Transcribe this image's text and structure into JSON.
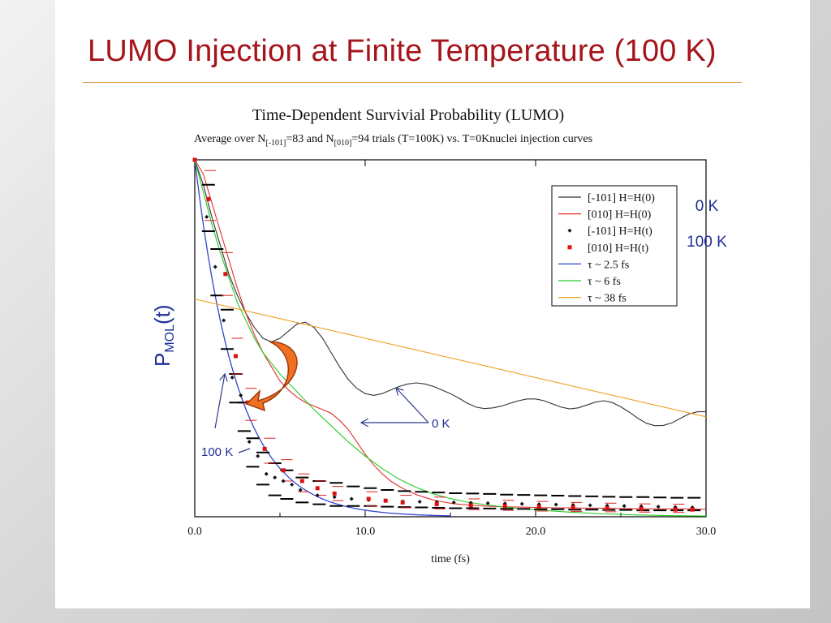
{
  "slide": {
    "title": "LUMO Injection at Finite Temperature (100 K)"
  },
  "colors": {
    "title": "#a5151b",
    "rule": "#d9892f",
    "label_blue": "#1f2f9a",
    "arrow_fill": "#f07022"
  },
  "chart_data": {
    "type": "line",
    "title": "Time-Dependent Survivial Probability (LUMO)",
    "subtitle": {
      "prefix": "Average over  N",
      "sub1": "[-101]",
      "mid1": "=83 and N",
      "sub2": "[010]",
      "suffix": "=94 trials (T=100K) vs. T=0Knuclei injection curves"
    },
    "xlabel": "time (fs)",
    "ylabel": {
      "main": "P",
      "sub": "MOL",
      "tail": "(t)"
    },
    "xlim": [
      0,
      30
    ],
    "ylim": [
      0,
      1
    ],
    "x_ticks": [
      "0.0",
      "10.0",
      "20.0",
      "30.0"
    ],
    "x_tick_values": [
      0,
      10,
      20,
      30
    ],
    "legend_position": "top-right",
    "legend": [
      {
        "label": "[-101] H=H(0)",
        "style": "line",
        "color": "#333333"
      },
      {
        "label": "[010] H=H(0)",
        "style": "line",
        "color": "#e03030"
      },
      {
        "label": "[-101] H=H(t)",
        "style": "dot",
        "color": "#111111"
      },
      {
        "label": "[010] H=H(t)",
        "style": "square",
        "color": "#e01010"
      },
      {
        "label": "τ ~ 2.5 fs",
        "style": "line",
        "color": "#3344cc"
      },
      {
        "label": "τ ~ 6 fs",
        "style": "line",
        "color": "#22cc22"
      },
      {
        "label": "τ ~ 38 fs",
        "style": "line",
        "color": "#f0a020"
      }
    ],
    "side_labels": {
      "zero_k": "0 K",
      "hundred_k": "100 K"
    },
    "annotations": {
      "zero_k": "0 K",
      "hundred_k": "100 K"
    },
    "series": [
      {
        "name": "[-101] H=H(0)",
        "kind": "line",
        "color": "#333333",
        "x": [
          0,
          0.5,
          1,
          1.5,
          2,
          2.5,
          3,
          3.5,
          4,
          4.5,
          5,
          5.5,
          6,
          6.5,
          7,
          7.5,
          8,
          8.5,
          9,
          9.5,
          10,
          10.5,
          11,
          11.5,
          12,
          12.5,
          13,
          13.5,
          14,
          14.5,
          15,
          15.5,
          16,
          16.5,
          17,
          17.5,
          18,
          18.5,
          19,
          19.5,
          20,
          20.5,
          21,
          21.5,
          22,
          22.5,
          23,
          23.5,
          24,
          24.5,
          25,
          25.5,
          26,
          26.5,
          27,
          27.5,
          28,
          28.5,
          29,
          29.5,
          30
        ],
        "y": [
          1.0,
          0.93,
          0.84,
          0.76,
          0.68,
          0.62,
          0.57,
          0.53,
          0.5,
          0.49,
          0.5,
          0.52,
          0.54,
          0.545,
          0.53,
          0.5,
          0.46,
          0.42,
          0.385,
          0.36,
          0.345,
          0.34,
          0.345,
          0.355,
          0.365,
          0.372,
          0.375,
          0.372,
          0.365,
          0.355,
          0.345,
          0.332,
          0.318,
          0.307,
          0.303,
          0.305,
          0.31,
          0.318,
          0.325,
          0.33,
          0.33,
          0.325,
          0.316,
          0.307,
          0.302,
          0.305,
          0.313,
          0.321,
          0.325,
          0.32,
          0.308,
          0.293,
          0.276,
          0.262,
          0.255,
          0.256,
          0.263,
          0.276,
          0.288,
          0.294,
          0.294
        ]
      },
      {
        "name": "[010] H=H(0)",
        "kind": "line",
        "color": "#e03030",
        "x": [
          0,
          0.5,
          1,
          1.5,
          2,
          2.5,
          3,
          3.5,
          4,
          4.5,
          5,
          5.5,
          6,
          6.5,
          7,
          7.5,
          8,
          8.5,
          9,
          9.5,
          10,
          10.5,
          11,
          11.5,
          12,
          12.5,
          13,
          13.5,
          14,
          14.5,
          15,
          15.5,
          16,
          17,
          18,
          19,
          20,
          21,
          22,
          23,
          24,
          25,
          26,
          27,
          28,
          29,
          30
        ],
        "y": [
          1.0,
          0.96,
          0.88,
          0.8,
          0.72,
          0.64,
          0.57,
          0.51,
          0.46,
          0.42,
          0.38,
          0.355,
          0.335,
          0.32,
          0.31,
          0.3,
          0.29,
          0.27,
          0.245,
          0.21,
          0.175,
          0.145,
          0.12,
          0.1,
          0.085,
          0.072,
          0.062,
          0.054,
          0.047,
          0.042,
          0.038,
          0.035,
          0.033,
          0.03,
          0.028,
          0.027,
          0.026,
          0.025,
          0.025,
          0.024,
          0.024,
          0.023,
          0.023,
          0.022,
          0.022,
          0.022,
          0.021
        ]
      },
      {
        "name": "τ ~ 2.5 fs",
        "kind": "exp",
        "color": "#3344cc",
        "tau": 2.5,
        "x_max": 15
      },
      {
        "name": "τ ~ 6 fs",
        "kind": "line",
        "color": "#22cc22",
        "x": [
          0,
          0.5,
          1,
          1.5,
          2,
          2.5,
          3,
          3.5,
          4,
          4.5,
          5,
          5.5,
          6,
          7,
          8,
          9,
          10,
          11,
          12,
          13,
          14,
          15,
          16,
          17,
          18,
          19,
          20,
          22,
          24,
          26,
          28,
          30
        ],
        "y": [
          1.0,
          0.91,
          0.82,
          0.74,
          0.67,
          0.6,
          0.55,
          0.5,
          0.46,
          0.43,
          0.4,
          0.375,
          0.35,
          0.3,
          0.255,
          0.21,
          0.17,
          0.135,
          0.105,
          0.082,
          0.064,
          0.051,
          0.041,
          0.034,
          0.028,
          0.023,
          0.019,
          0.013,
          0.008,
          0.005,
          0.003,
          0.002
        ]
      },
      {
        "name": "τ ~ 38 fs",
        "kind": "line",
        "color": "#f0a020",
        "x": [
          0,
          30
        ],
        "y": [
          0.61,
          0.28
        ]
      },
      {
        "name": "[-101] H=H(t)",
        "kind": "dots",
        "color": "#111111",
        "x": [
          0.7,
          1.2,
          1.7,
          2.2,
          2.7,
          3.2,
          3.7,
          4.2,
          4.7,
          5.2,
          5.7,
          6.2,
          7.2,
          8.2,
          9.2,
          10.2,
          11.2,
          12.2,
          13.2,
          14.2,
          15.2,
          16.2,
          17.2,
          18.2,
          19.2,
          20.2,
          21.2,
          22.2,
          23.2,
          24.2,
          25.2,
          26.2,
          27.2,
          28.2,
          29.2
        ],
        "y": [
          0.84,
          0.7,
          0.55,
          0.39,
          0.34,
          0.21,
          0.17,
          0.12,
          0.11,
          0.1,
          0.09,
          0.075,
          0.06,
          0.055,
          0.05,
          0.047,
          0.045,
          0.043,
          0.042,
          0.041,
          0.04,
          0.039,
          0.038,
          0.037,
          0.036,
          0.035,
          0.034,
          0.033,
          0.032,
          0.031,
          0.03,
          0.029,
          0.028,
          0.027,
          0.026
        ]
      },
      {
        "name": "[010] H=H(t)",
        "kind": "squares",
        "color": "#e01010",
        "x": [
          0.8,
          1.8,
          2.4,
          3.1,
          4.1,
          5.2,
          6.3,
          7.2,
          8.2,
          10.2,
          11.2,
          12.2,
          14.2,
          16.2,
          18.2,
          20.2,
          22.2,
          24.2,
          26.2,
          28.2,
          29.2
        ],
        "y": [
          0.89,
          0.68,
          0.45,
          0.32,
          0.19,
          0.13,
          0.1,
          0.08,
          0.065,
          0.05,
          0.045,
          0.04,
          0.035,
          0.032,
          0.03,
          0.028,
          0.026,
          0.024,
          0.022,
          0.02,
          0.02
        ]
      },
      {
        "name": "error-bars",
        "kind": "errorbars",
        "black": [
          [
            0.8,
            0.93,
            0.8
          ],
          [
            1.3,
            0.75,
            0.62
          ],
          [
            1.9,
            0.58,
            0.47
          ],
          [
            2.4,
            0.4,
            0.32
          ],
          [
            2.9,
            0.32,
            0.24
          ],
          [
            3.4,
            0.22,
            0.14
          ],
          [
            4.0,
            0.18,
            0.09
          ],
          [
            4.7,
            0.15,
            0.06
          ],
          [
            5.4,
            0.13,
            0.05
          ],
          [
            6.3,
            0.11,
            0.04
          ],
          [
            7.3,
            0.1,
            0.035
          ],
          [
            8.3,
            0.095,
            0.03
          ],
          [
            9.3,
            0.085,
            0.03
          ],
          [
            10.3,
            0.08,
            0.03
          ],
          [
            11.3,
            0.075,
            0.028
          ],
          [
            12.3,
            0.072,
            0.027
          ],
          [
            13.3,
            0.07,
            0.026
          ],
          [
            14.3,
            0.068,
            0.025
          ],
          [
            15.3,
            0.066,
            0.024
          ],
          [
            16.3,
            0.065,
            0.024
          ],
          [
            17.3,
            0.064,
            0.023
          ],
          [
            18.3,
            0.062,
            0.022
          ],
          [
            19.3,
            0.061,
            0.022
          ],
          [
            20.3,
            0.06,
            0.021
          ],
          [
            21.3,
            0.059,
            0.021
          ],
          [
            22.3,
            0.058,
            0.02
          ],
          [
            23.3,
            0.057,
            0.02
          ],
          [
            24.3,
            0.056,
            0.019
          ],
          [
            25.3,
            0.055,
            0.019
          ],
          [
            26.3,
            0.055,
            0.018
          ],
          [
            27.3,
            0.054,
            0.018
          ],
          [
            28.3,
            0.053,
            0.018
          ],
          [
            29.3,
            0.053,
            0.018
          ]
        ],
        "red": [
          [
            0.9,
            0.97,
            0.83
          ],
          [
            1.9,
            0.74,
            0.62
          ],
          [
            2.5,
            0.5,
            0.4
          ],
          [
            3.3,
            0.36,
            0.27
          ],
          [
            4.4,
            0.22,
            0.15
          ],
          [
            5.4,
            0.16,
            0.1
          ],
          [
            6.4,
            0.12,
            0.07
          ],
          [
            7.4,
            0.1,
            0.06
          ],
          [
            8.4,
            0.085,
            0.045
          ],
          [
            10.4,
            0.07,
            0.03
          ],
          [
            12.4,
            0.06,
            0.025
          ],
          [
            14.4,
            0.055,
            0.022
          ],
          [
            16.4,
            0.05,
            0.02
          ],
          [
            18.4,
            0.046,
            0.018
          ],
          [
            20.4,
            0.043,
            0.016
          ],
          [
            22.4,
            0.04,
            0.015
          ],
          [
            24.4,
            0.038,
            0.014
          ],
          [
            26.4,
            0.036,
            0.013
          ],
          [
            28.4,
            0.035,
            0.012
          ]
        ]
      }
    ]
  }
}
